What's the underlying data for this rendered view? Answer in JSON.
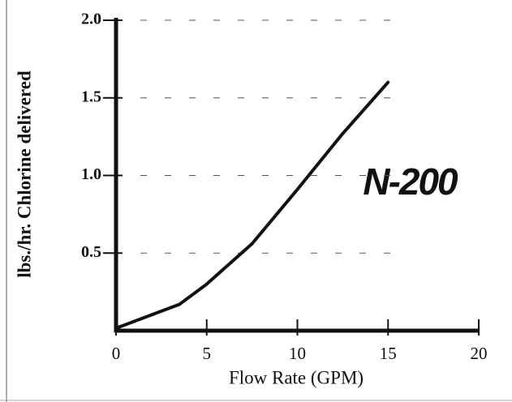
{
  "chart_data": {
    "type": "line",
    "annotation": "N-200",
    "x_label": "Flow Rate (GPM)",
    "y_label": "lbs./hr. Chlorine delivered",
    "series": [
      {
        "color": "#111111",
        "x": [
          0.1,
          3.5,
          5,
          7.5,
          10,
          12.5,
          15
        ],
        "values": [
          0.02,
          0.17,
          0.3,
          0.56,
          0.91,
          1.27,
          1.6
        ]
      }
    ],
    "xlim": [
      0,
      20
    ],
    "xticks": [
      0,
      5,
      10,
      15,
      20
    ],
    "ylim": [
      0,
      2.0
    ],
    "yticks": [
      0.5,
      {
        "value": 1.0,
        "label": "1.0"
      },
      1.5,
      {
        "value": 2.0,
        "label": "2.0"
      }
    ],
    "grid": true
  }
}
